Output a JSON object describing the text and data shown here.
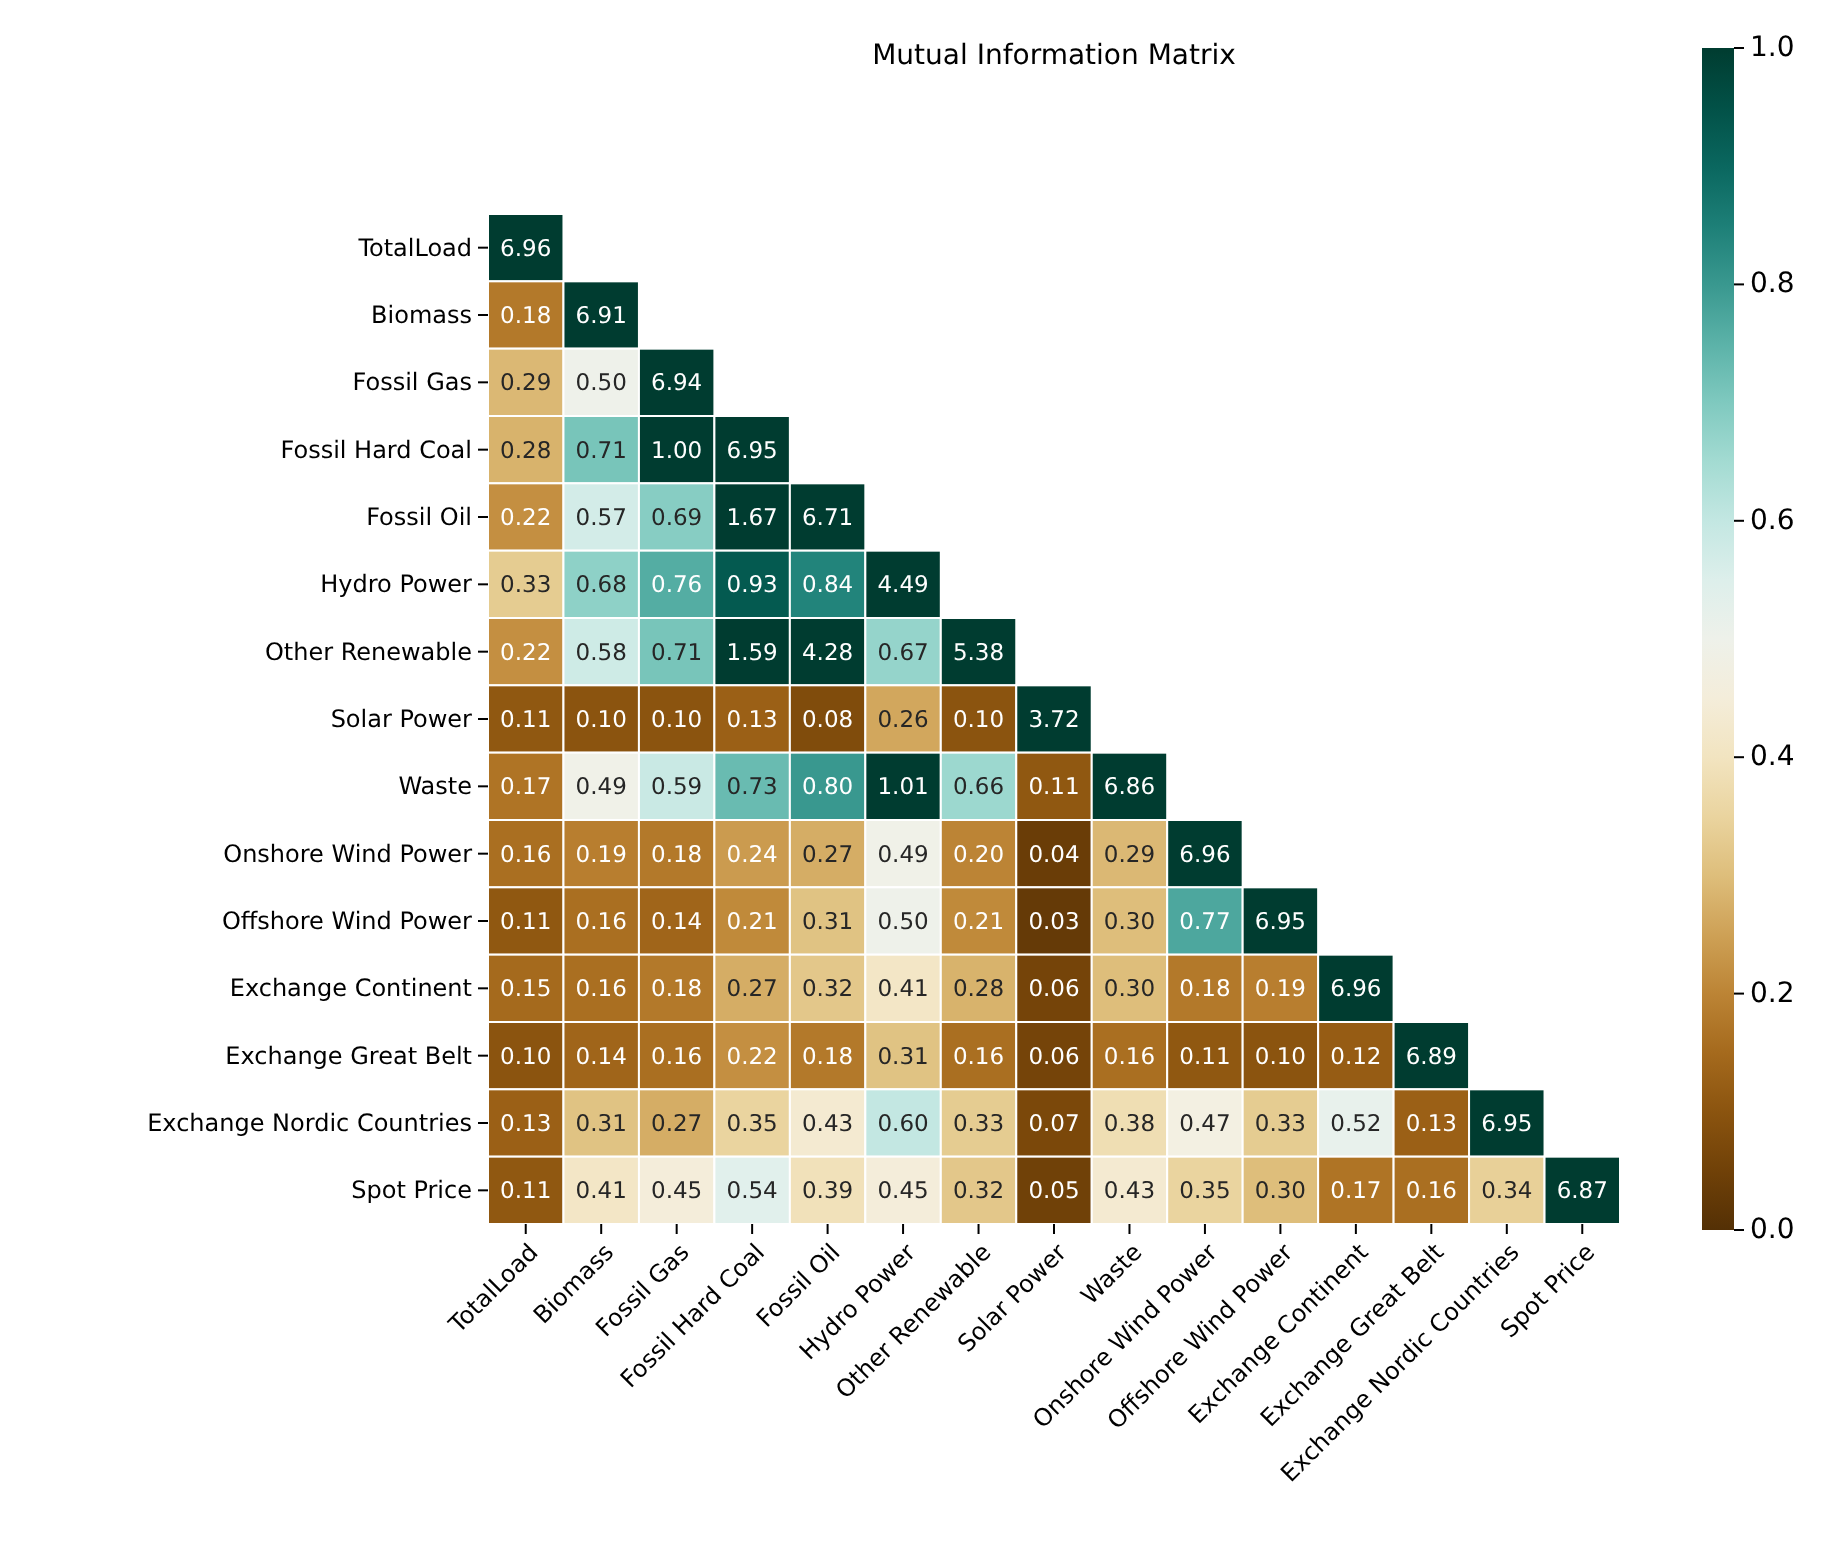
{
  "chart_data": {
    "type": "heatmap",
    "title": "Mutual Information Matrix",
    "categories": [
      "TotalLoad",
      "Biomass",
      "Fossil Gas",
      "Fossil Hard Coal",
      "Fossil Oil",
      "Hydro Power",
      "Other Renewable",
      "Solar Power",
      "Waste",
      "Onshore Wind Power",
      "Offshore Wind Power",
      "Exchange Continent",
      "Exchange Great Belt",
      "Exchange Nordic Countries",
      "Spot Price"
    ],
    "y_categories": [
      "TotalLoad",
      "Biomass",
      "Fossil Gas",
      "Fossil Hard Coal",
      "Fossil Oil",
      "Hydro Power",
      "Other Renewable",
      "Solar Power",
      "Waste",
      "Onshore Wind Power",
      "Offshore Wind Power",
      "Exchange Continent",
      "Exchange Great Belt",
      "Exchange Nordic Countries",
      "Spot Price"
    ],
    "cells": [
      [
        6.96,
        null,
        null,
        null,
        null,
        null,
        null,
        null,
        null,
        null,
        null,
        null,
        null,
        null,
        null
      ],
      [
        0.18,
        6.91,
        null,
        null,
        null,
        null,
        null,
        null,
        null,
        null,
        null,
        null,
        null,
        null,
        null
      ],
      [
        0.29,
        0.5,
        6.94,
        null,
        null,
        null,
        null,
        null,
        null,
        null,
        null,
        null,
        null,
        null,
        null
      ],
      [
        0.28,
        0.71,
        1.0,
        6.95,
        null,
        null,
        null,
        null,
        null,
        null,
        null,
        null,
        null,
        null,
        null
      ],
      [
        0.22,
        0.57,
        0.69,
        1.67,
        6.71,
        null,
        null,
        null,
        null,
        null,
        null,
        null,
        null,
        null,
        null
      ],
      [
        0.33,
        0.68,
        0.76,
        0.93,
        0.84,
        4.49,
        null,
        null,
        null,
        null,
        null,
        null,
        null,
        null,
        null
      ],
      [
        0.22,
        0.58,
        0.71,
        1.59,
        4.28,
        0.67,
        5.38,
        null,
        null,
        null,
        null,
        null,
        null,
        null,
        null
      ],
      [
        0.11,
        0.1,
        0.1,
        0.13,
        0.08,
        0.26,
        0.1,
        3.72,
        null,
        null,
        null,
        null,
        null,
        null,
        null
      ],
      [
        0.17,
        0.49,
        0.59,
        0.73,
        0.8,
        1.01,
        0.66,
        0.11,
        6.86,
        null,
        null,
        null,
        null,
        null,
        null
      ],
      [
        0.16,
        0.19,
        0.18,
        0.24,
        0.27,
        0.49,
        0.2,
        0.04,
        0.29,
        6.96,
        null,
        null,
        null,
        null,
        null
      ],
      [
        0.11,
        0.16,
        0.14,
        0.21,
        0.31,
        0.5,
        0.21,
        0.03,
        0.3,
        0.77,
        6.95,
        null,
        null,
        null,
        null
      ],
      [
        0.15,
        0.16,
        0.18,
        0.27,
        0.32,
        0.41,
        0.28,
        0.06,
        0.3,
        0.18,
        0.19,
        6.96,
        null,
        null,
        null
      ],
      [
        0.1,
        0.14,
        0.16,
        0.22,
        0.18,
        0.31,
        0.16,
        0.06,
        0.16,
        0.11,
        0.1,
        0.12,
        6.89,
        null,
        null
      ],
      [
        0.13,
        0.31,
        0.27,
        0.35,
        0.43,
        0.6,
        0.33,
        0.07,
        0.38,
        0.47,
        0.33,
        0.52,
        0.13,
        6.95,
        null
      ],
      [
        0.11,
        0.41,
        0.45,
        0.54,
        0.39,
        0.45,
        0.32,
        0.05,
        0.43,
        0.35,
        0.3,
        0.17,
        0.16,
        0.34,
        6.87
      ]
    ],
    "data_labels": true,
    "cell_labels": [
      [
        "6.96",
        null,
        null,
        null,
        null,
        null,
        null,
        null,
        null,
        null,
        null,
        null,
        null,
        null,
        null
      ],
      [
        "0.18",
        "6.91",
        null,
        null,
        null,
        null,
        null,
        null,
        null,
        null,
        null,
        null,
        null,
        null,
        null
      ],
      [
        "0.29",
        "0.50",
        "6.94",
        null,
        null,
        null,
        null,
        null,
        null,
        null,
        null,
        null,
        null,
        null,
        null
      ],
      [
        "0.28",
        "0.71",
        "1.00",
        "6.95",
        null,
        null,
        null,
        null,
        null,
        null,
        null,
        null,
        null,
        null,
        null
      ],
      [
        "0.22",
        "0.57",
        "0.69",
        "1.67",
        "6.71",
        null,
        null,
        null,
        null,
        null,
        null,
        null,
        null,
        null,
        null
      ],
      [
        "0.33",
        "0.68",
        "0.76",
        "0.93",
        "0.84",
        "4.49",
        null,
        null,
        null,
        null,
        null,
        null,
        null,
        null,
        null
      ],
      [
        "0.22",
        "0.58",
        "0.71",
        "1.59",
        "4.28",
        "0.67",
        "5.38",
        null,
        null,
        null,
        null,
        null,
        null,
        null,
        null
      ],
      [
        "0.11",
        "0.10",
        "0.10",
        "0.13",
        "0.08",
        "0.26",
        "0.10",
        "3.72",
        null,
        null,
        null,
        null,
        null,
        null,
        null
      ],
      [
        "0.17",
        "0.49",
        "0.59",
        "0.73",
        "0.80",
        "1.01",
        "0.66",
        "0.11",
        "6.86",
        null,
        null,
        null,
        null,
        null,
        null
      ],
      [
        "0.16",
        "0.19",
        "0.18",
        "0.24",
        "0.27",
        "0.49",
        "0.20",
        "0.04",
        "0.29",
        "6.96",
        null,
        null,
        null,
        null,
        null
      ],
      [
        "0.11",
        "0.16",
        "0.14",
        "0.21",
        "0.31",
        "0.50",
        "0.21",
        "0.03",
        "0.30",
        "0.77",
        "6.95",
        null,
        null,
        null,
        null
      ],
      [
        "0.15",
        "0.16",
        "0.18",
        "0.27",
        "0.32",
        "0.41",
        "0.28",
        "0.06",
        "0.30",
        "0.18",
        "0.19",
        "6.96",
        null,
        null,
        null
      ],
      [
        "0.10",
        "0.14",
        "0.16",
        "0.22",
        "0.18",
        "0.31",
        "0.16",
        "0.06",
        "0.16",
        "0.11",
        "0.10",
        "0.12",
        "6.89",
        null,
        null
      ],
      [
        "0.13",
        "0.31",
        "0.27",
        "0.35",
        "0.43",
        "0.60",
        "0.33",
        "0.07",
        "0.38",
        "0.47",
        "0.33",
        "0.52",
        "0.13",
        "6.95",
        null
      ],
      [
        "0.11",
        "0.41",
        "0.45",
        "0.54",
        "0.39",
        "0.45",
        "0.32",
        "0.05",
        "0.43",
        "0.35",
        "0.30",
        "0.17",
        "0.16",
        "0.34",
        "6.87"
      ]
    ],
    "clim": [
      0,
      1
    ],
    "cticks": [
      {
        "value": 0,
        "label": "0.0"
      },
      {
        "value": 0.2,
        "label": "0.2"
      },
      {
        "value": 0.4,
        "label": "0.4"
      },
      {
        "value": 0.6,
        "label": "0.6"
      },
      {
        "value": 0.8,
        "label": "0.8"
      },
      {
        "value": 1,
        "label": "1.0"
      }
    ]
  }
}
